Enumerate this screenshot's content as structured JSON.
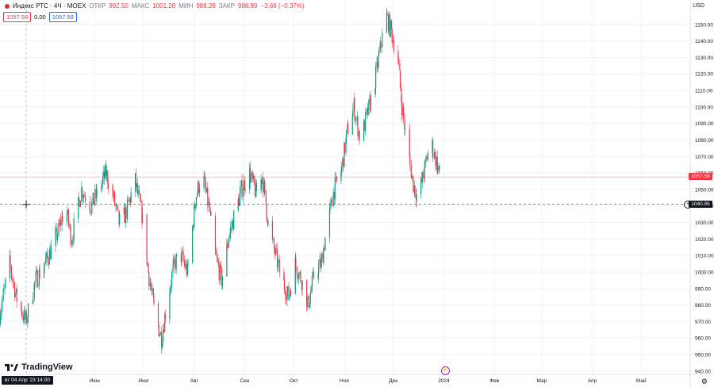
{
  "header": {
    "title": "Индекс РТС · 4Ч · MOEX",
    "open_label": "ОТКР",
    "open": "992.50",
    "high_label": "МАКС",
    "high": "1001.28",
    "low_label": "МИН",
    "low": "988.26",
    "close_label": "ЗАКР",
    "close": "988.89",
    "change": "−3.68 (−0.37%)"
  },
  "chips": {
    "left": "1057.58",
    "mid": "0.00",
    "right": "1057.58"
  },
  "currency": "USD",
  "logo_text": "TradingView",
  "crosshair_date": "вт 04 Апр '23   14:00",
  "last_price_tag": "1057.58",
  "crosshair_price_tag": "1040.95",
  "colors": {
    "up": "#089981",
    "down": "#f23645",
    "grid": "#f0f3fa",
    "text": "#131722"
  },
  "chart_data": {
    "type": "candlestick",
    "x_range": [
      "2023-04-04",
      "2024-05-31"
    ],
    "ylim": [
      938,
      1160
    ],
    "y_ticks": [
      940,
      950,
      960,
      970,
      980,
      990,
      1000,
      1010,
      1020,
      1030,
      1040,
      1050,
      1060,
      1070,
      1080,
      1090,
      1100,
      1110,
      1120,
      1130,
      1140,
      1150
    ],
    "x_ticks": [
      {
        "label": "Май",
        "date": "2023-05-01"
      },
      {
        "label": "Июн",
        "date": "2023-06-01"
      },
      {
        "label": "Июл",
        "date": "2023-07-01"
      },
      {
        "label": "Авг",
        "date": "2023-08-01"
      },
      {
        "label": "Сен",
        "date": "2023-09-01"
      },
      {
        "label": "Окт",
        "date": "2023-10-01"
      },
      {
        "label": "Ноя",
        "date": "2023-11-01"
      },
      {
        "label": "Дек",
        "date": "2023-12-01"
      },
      {
        "label": "2024",
        "date": "2024-01-01"
      },
      {
        "label": "Фев",
        "date": "2024-02-01"
      },
      {
        "label": "Мар",
        "date": "2024-03-01"
      },
      {
        "label": "Апр",
        "date": "2024-04-01"
      },
      {
        "label": "Май",
        "date": "2024-05-01"
      }
    ],
    "last_price": 1057.58,
    "crosshair_price": 1040.95,
    "close_path": [
      {
        "date": "2023-04-04",
        "close": 975
      },
      {
        "date": "2023-04-10",
        "close": 1005
      },
      {
        "date": "2023-04-14",
        "close": 985
      },
      {
        "date": "2023-04-20",
        "close": 970
      },
      {
        "date": "2023-04-26",
        "close": 995
      },
      {
        "date": "2023-05-04",
        "close": 1010
      },
      {
        "date": "2023-05-10",
        "close": 1025
      },
      {
        "date": "2023-05-14",
        "close": 1040
      },
      {
        "date": "2023-05-18",
        "close": 1020
      },
      {
        "date": "2023-05-24",
        "close": 1050
      },
      {
        "date": "2023-05-30",
        "close": 1040
      },
      {
        "date": "2023-06-04",
        "close": 1050
      },
      {
        "date": "2023-06-08",
        "close": 1060
      },
      {
        "date": "2023-06-12",
        "close": 1048
      },
      {
        "date": "2023-06-16",
        "close": 1030
      },
      {
        "date": "2023-06-20",
        "close": 1035
      },
      {
        "date": "2023-06-26",
        "close": 1055
      },
      {
        "date": "2023-06-30",
        "close": 1035
      },
      {
        "date": "2023-07-04",
        "close": 1000
      },
      {
        "date": "2023-07-08",
        "close": 975
      },
      {
        "date": "2023-07-12",
        "close": 960
      },
      {
        "date": "2023-07-16",
        "close": 985
      },
      {
        "date": "2023-07-20",
        "close": 1005
      },
      {
        "date": "2023-07-24",
        "close": 1010
      },
      {
        "date": "2023-07-28",
        "close": 1000
      },
      {
        "date": "2023-08-02",
        "close": 1045
      },
      {
        "date": "2023-08-06",
        "close": 1060
      },
      {
        "date": "2023-08-10",
        "close": 1040
      },
      {
        "date": "2023-08-14",
        "close": 1010
      },
      {
        "date": "2023-08-18",
        "close": 995
      },
      {
        "date": "2023-08-22",
        "close": 1020
      },
      {
        "date": "2023-08-26",
        "close": 1035
      },
      {
        "date": "2023-08-30",
        "close": 1050
      },
      {
        "date": "2023-09-04",
        "close": 1060
      },
      {
        "date": "2023-09-08",
        "close": 1048
      },
      {
        "date": "2023-09-12",
        "close": 1058
      },
      {
        "date": "2023-09-16",
        "close": 1025
      },
      {
        "date": "2023-09-20",
        "close": 1010
      },
      {
        "date": "2023-09-24",
        "close": 995
      },
      {
        "date": "2023-09-28",
        "close": 985
      },
      {
        "date": "2023-10-02",
        "close": 1005
      },
      {
        "date": "2023-10-06",
        "close": 995
      },
      {
        "date": "2023-10-10",
        "close": 980
      },
      {
        "date": "2023-10-14",
        "close": 1000
      },
      {
        "date": "2023-10-18",
        "close": 1005
      },
      {
        "date": "2023-10-22",
        "close": 1030
      },
      {
        "date": "2023-10-26",
        "close": 1050
      },
      {
        "date": "2023-10-30",
        "close": 1060
      },
      {
        "date": "2023-11-03",
        "close": 1085
      },
      {
        "date": "2023-11-07",
        "close": 1100
      },
      {
        "date": "2023-11-11",
        "close": 1080
      },
      {
        "date": "2023-11-15",
        "close": 1095
      },
      {
        "date": "2023-11-19",
        "close": 1110
      },
      {
        "date": "2023-11-23",
        "close": 1135
      },
      {
        "date": "2023-11-27",
        "close": 1155
      },
      {
        "date": "2023-11-30",
        "close": 1145
      },
      {
        "date": "2023-12-04",
        "close": 1130
      },
      {
        "date": "2023-12-06",
        "close": 1105
      },
      {
        "date": "2023-12-09",
        "close": 1080
      },
      {
        "date": "2023-12-13",
        "close": 1055
      },
      {
        "date": "2023-12-16",
        "close": 1045
      },
      {
        "date": "2023-12-20",
        "close": 1060
      },
      {
        "date": "2023-12-24",
        "close": 1080
      },
      {
        "date": "2023-12-28",
        "close": 1065
      },
      {
        "date": "2023-12-30",
        "close": 1057.58
      }
    ]
  }
}
